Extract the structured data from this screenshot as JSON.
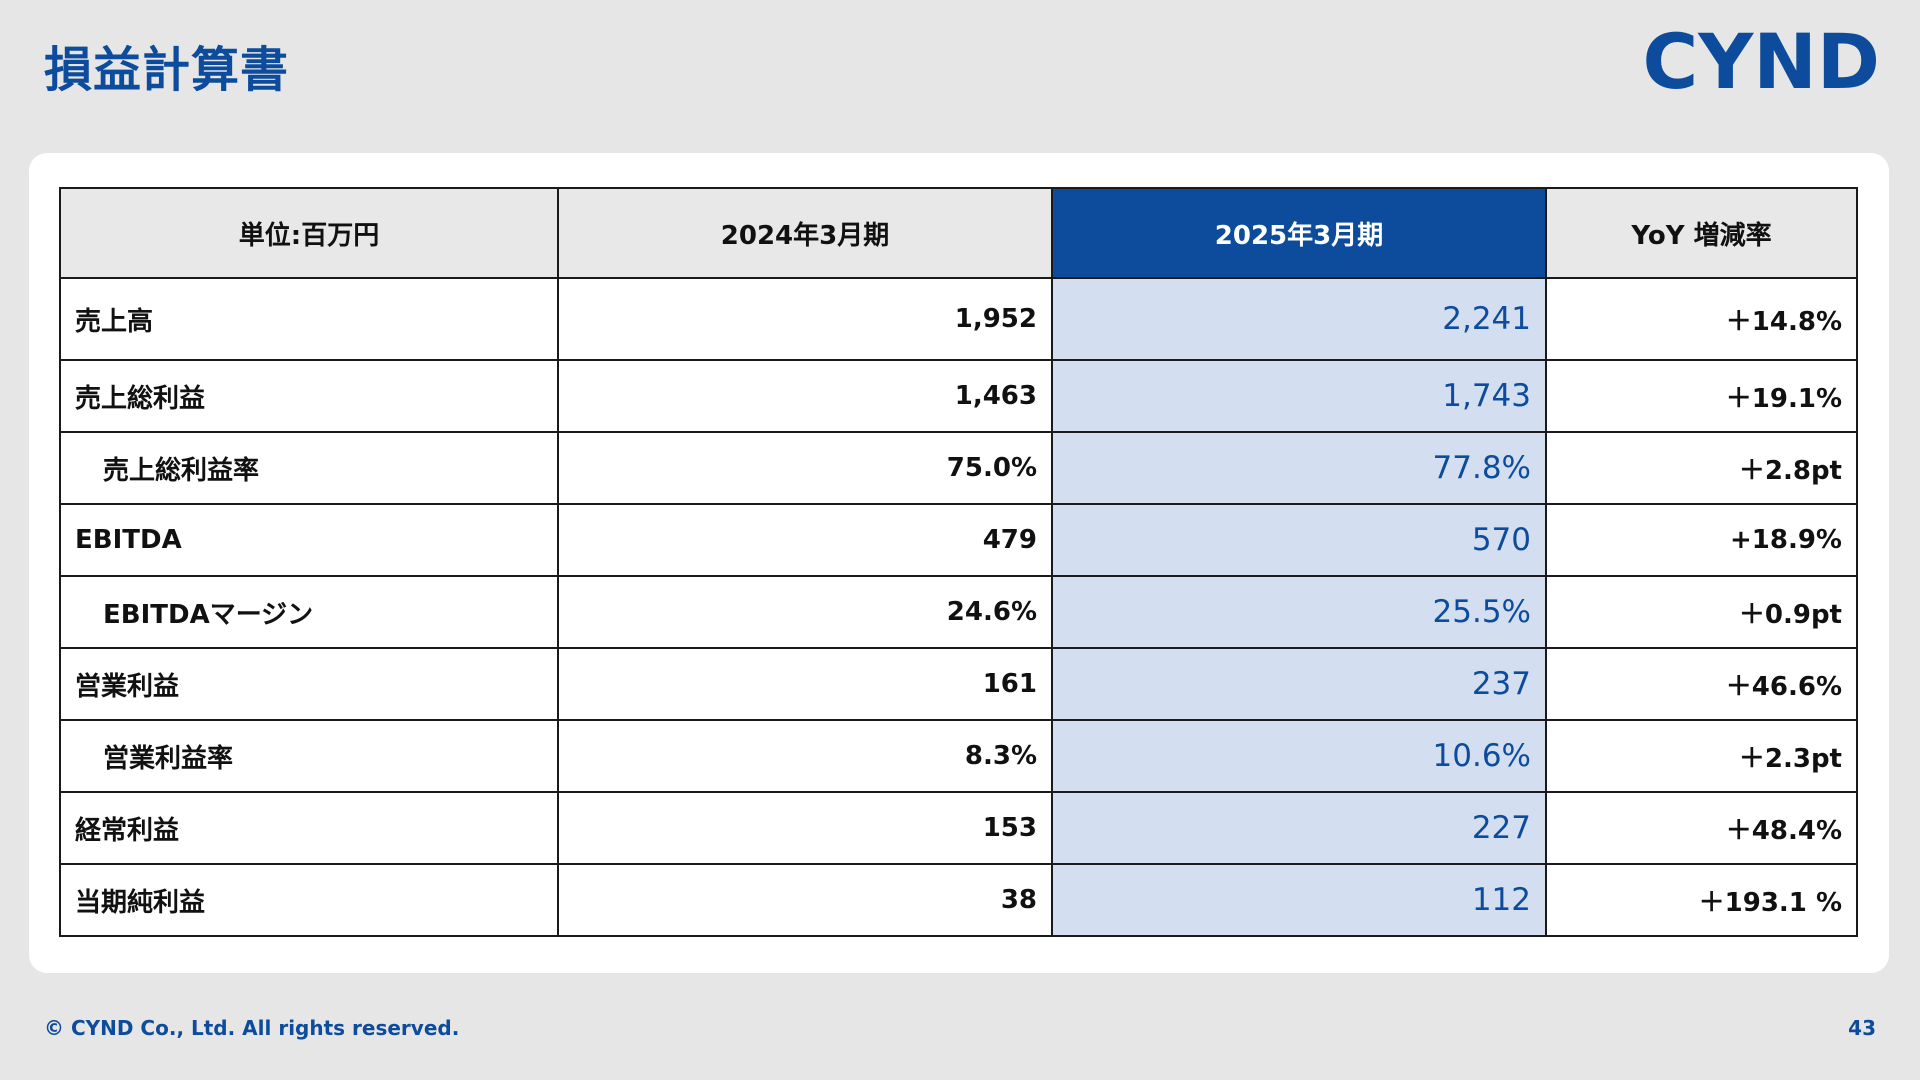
{
  "page": {
    "title": "損益計算書",
    "logo": "CYND",
    "copyright": "© CYND Co., Ltd. All rights reserved.",
    "page_number": "43"
  },
  "table": {
    "headers": [
      "単位:百万円",
      "2024年3月期",
      "2025年3月期",
      "YoY 増減率"
    ],
    "rows": [
      {
        "label": "売上高",
        "prev": "1,952",
        "curr": "2,241",
        "yoy": "＋14.8%"
      },
      {
        "label": "売上総利益",
        "prev": "1,463",
        "curr": "1,743",
        "yoy": "＋19.1%"
      },
      {
        "label": "売上総利益率",
        "prev": "75.0%",
        "curr": "77.8%",
        "yoy": "＋2.8pt"
      },
      {
        "label": "EBITDA",
        "prev": "479",
        "curr": "570",
        "yoy": "+18.9%"
      },
      {
        "label": "EBITDAマージン",
        "prev": "24.6%",
        "curr": "25.5%",
        "yoy": "＋0.9pt"
      },
      {
        "label": "営業利益",
        "prev": "161",
        "curr": "237",
        "yoy": "＋46.6%"
      },
      {
        "label": "営業利益率",
        "prev": "8.3%",
        "curr": "10.6%",
        "yoy": "＋2.3pt"
      },
      {
        "label": "経常利益",
        "prev": "153",
        "curr": "227",
        "yoy": "＋48.4%"
      },
      {
        "label": "当期純利益",
        "prev": "38",
        "curr": "112",
        "yoy": "＋193.1 %"
      }
    ]
  },
  "colors": {
    "brand": "#0d4c9c",
    "highlight_column": "#d3dff0",
    "header_bg": "#e8e8e8",
    "background": "#e6e6e6"
  }
}
